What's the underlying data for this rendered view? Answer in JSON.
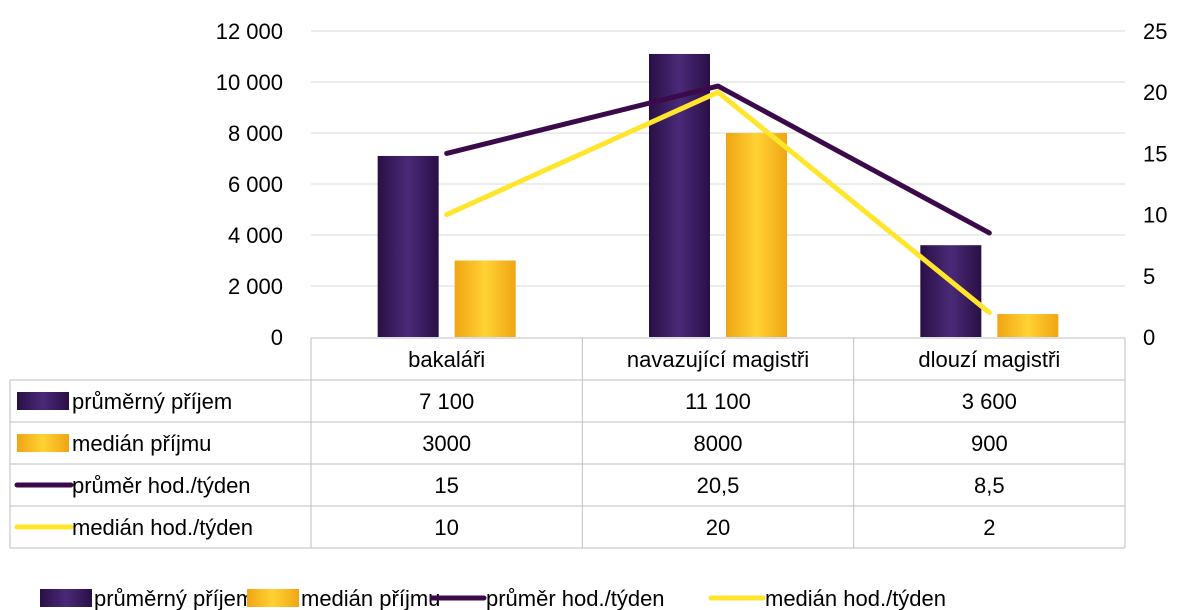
{
  "chart_data": {
    "type": "bar",
    "categories": [
      "bakaláři",
      "navazující magistři",
      "dlouzí magistři"
    ],
    "series": [
      {
        "name": "průměrný příjem",
        "kind": "bar",
        "axis": "left",
        "values": [
          7100,
          11100,
          3600
        ],
        "labels": [
          "7 100",
          "11 100",
          "3 600"
        ],
        "color": "#3a1d5c"
      },
      {
        "name": "medián příjmu",
        "kind": "bar",
        "axis": "left",
        "values": [
          3000,
          8000,
          900
        ],
        "labels": [
          "3000",
          "8000",
          "900"
        ],
        "color": "#f6b81c"
      },
      {
        "name": "průměr hod./týden",
        "kind": "line",
        "axis": "right",
        "values": [
          15,
          20.5,
          8.5
        ],
        "labels": [
          "15",
          "20,5",
          "8,5"
        ],
        "color": "#3b0a4a"
      },
      {
        "name": "medián hod./týden",
        "kind": "line",
        "axis": "right",
        "values": [
          10,
          20,
          2
        ],
        "labels": [
          "10",
          "20",
          "2"
        ],
        "color": "#ffe52b"
      }
    ],
    "y_left": {
      "ylim": [
        0,
        12000
      ],
      "ticks": [
        "0",
        "2 000",
        "4 000",
        "6 000",
        "8 000",
        "10 000",
        "12 000"
      ]
    },
    "y_right": {
      "ylim": [
        0,
        25
      ],
      "ticks": [
        "0",
        "5",
        "10",
        "15",
        "20",
        "25"
      ]
    },
    "grid": true,
    "data_table": true,
    "legend_position": "bottom"
  }
}
